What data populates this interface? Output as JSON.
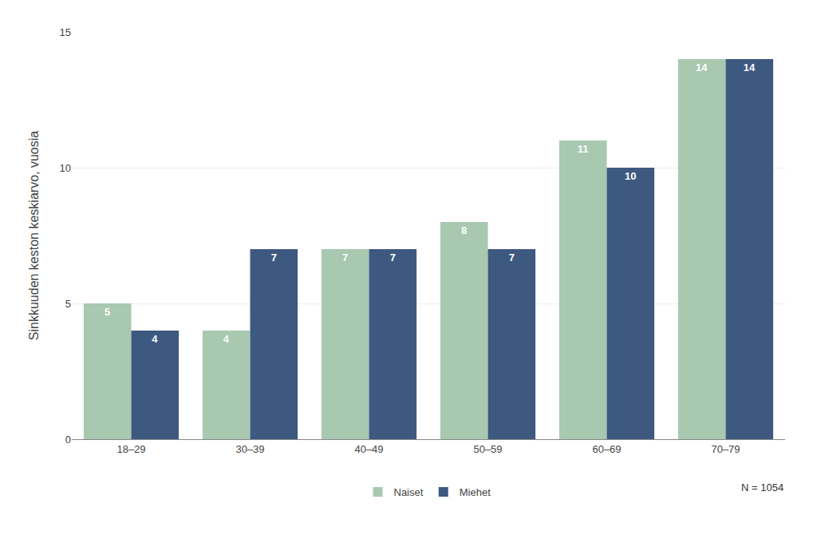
{
  "chart_data": {
    "type": "bar",
    "categories": [
      "18–29",
      "30–39",
      "40–49",
      "50–59",
      "60–69",
      "70–79"
    ],
    "series": [
      {
        "name": "Naiset",
        "color": "#a8c8b0",
        "values": [
          5,
          4,
          7,
          8,
          11,
          14
        ]
      },
      {
        "name": "Miehet",
        "color": "#3d5980",
        "values": [
          4,
          7,
          7,
          7,
          10,
          14
        ]
      }
    ],
    "ylabel": "Sinkkuuden keston keskiarvo, vuosia",
    "ylim": [
      0,
      15
    ],
    "yticks": [
      0,
      5,
      10,
      15
    ],
    "grid": true,
    "data_labels": true,
    "legend": "bottom",
    "annotations": [
      "N = 1054"
    ]
  }
}
